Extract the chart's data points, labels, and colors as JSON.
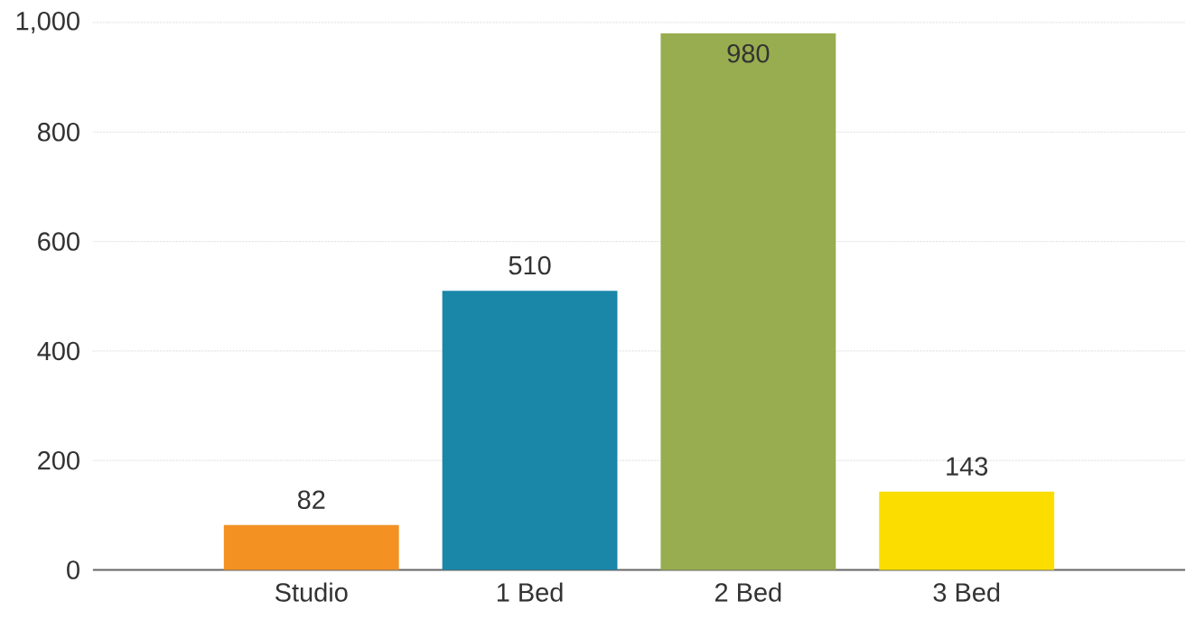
{
  "chart_data": {
    "type": "bar",
    "categories": [
      "Studio",
      "1 Bed",
      "2 Bed",
      "3 Bed"
    ],
    "values": [
      82,
      510,
      980,
      143
    ],
    "colors": [
      "#f39123",
      "#1a86a8",
      "#98ad4f",
      "#fcdd00"
    ],
    "ylim": [
      0,
      1000
    ],
    "yticks": [
      0,
      200,
      400,
      600,
      800,
      {
        "value": 1000,
        "label": "1,000"
      }
    ],
    "grid": "y",
    "data_labels": true
  }
}
